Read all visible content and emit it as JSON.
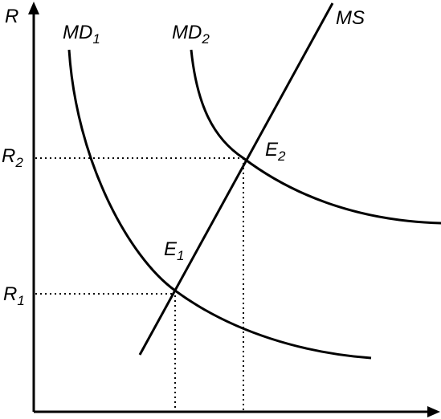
{
  "axis_label": "R",
  "curves": [
    {
      "main": "MD",
      "sub": "1"
    },
    {
      "main": "MD",
      "sub": "2"
    },
    {
      "main": "MS"
    }
  ],
  "levels": [
    {
      "main": "R",
      "sub": "2"
    },
    {
      "main": "R",
      "sub": "1"
    }
  ],
  "equilibria": [
    {
      "main": "E",
      "sub": "1"
    },
    {
      "main": "E",
      "sub": "2"
    }
  ]
}
